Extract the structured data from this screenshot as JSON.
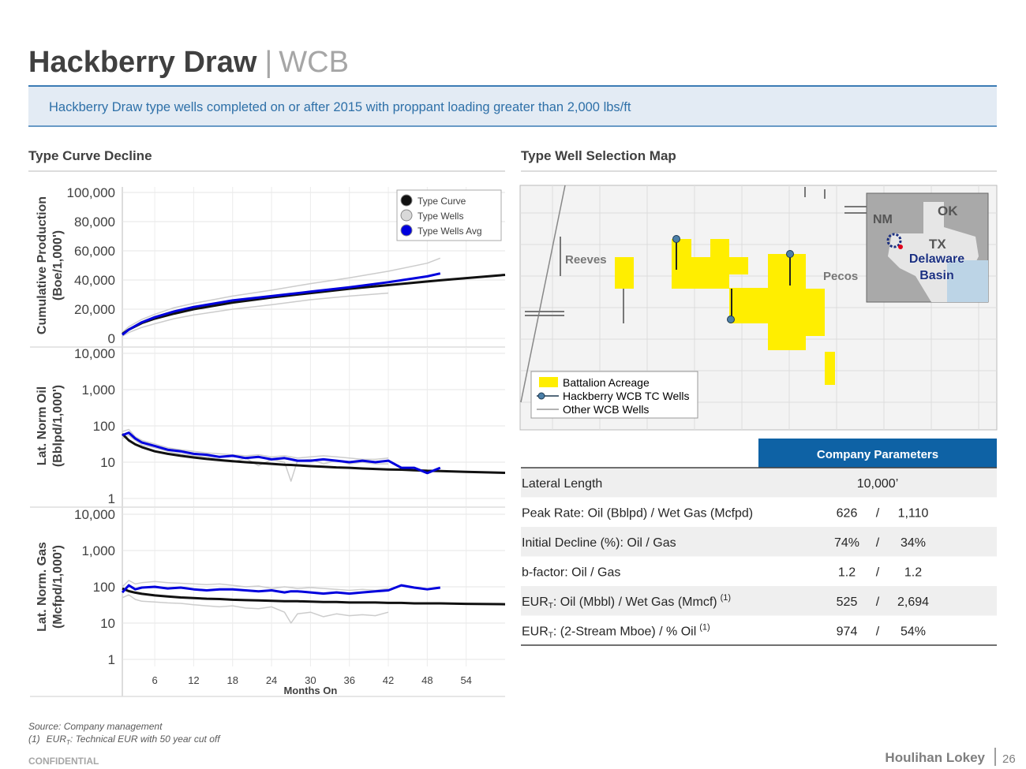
{
  "header": {
    "title": "Hackberry Draw",
    "separator": "|",
    "subtitle": "WCB"
  },
  "banner": "Hackberry Draw type wells completed on or after 2015 with proppant loading greater than 2,000 lbs/ft",
  "left_heading": "Type Curve Decline",
  "right_heading": "Type Well Selection Map",
  "chart_data": [
    {
      "type": "line",
      "ylabel": [
        "Cumulative Production",
        "(Boe/1,000')"
      ],
      "x": [
        1,
        2,
        4,
        6,
        9,
        12,
        18,
        24,
        30,
        36,
        42,
        48,
        50,
        54,
        60
      ],
      "xlim": [
        1,
        60
      ],
      "xticks": [
        6,
        12,
        18,
        24,
        30,
        36,
        42,
        48,
        54
      ],
      "ylim": [
        0,
        100000
      ],
      "yticks": [
        0,
        {
          "value": 20000,
          "label": "20,000"
        },
        {
          "value": 40000,
          "label": "40,000"
        },
        {
          "value": 60000,
          "label": "60,000"
        },
        {
          "value": 80000,
          "label": "80,000"
        },
        {
          "value": 100000,
          "label": "100,000"
        }
      ],
      "grid": true,
      "legend": "upper right",
      "series": [
        {
          "name": "Type Wells",
          "color": "#cccccc",
          "values": [
            4000,
            8000,
            13000,
            16500,
            21000,
            24000,
            29000,
            33000,
            37500,
            41500,
            46000,
            51500,
            55000,
            null,
            null
          ]
        },
        {
          "color": "#cccccc",
          "values": [
            1500,
            4000,
            7500,
            10000,
            13500,
            16000,
            20000,
            23000,
            26500,
            29000,
            31000,
            null,
            null,
            null,
            null
          ]
        },
        {
          "name": "Type Curve",
          "color": "#111111",
          "values": [
            3000,
            6000,
            10500,
            13500,
            17000,
            20000,
            24500,
            28000,
            31000,
            34000,
            36500,
            39000,
            39800,
            41300,
            43500
          ]
        },
        {
          "name": "Type Wells Avg",
          "color": "#0000dd",
          "values": [
            2500,
            6000,
            11000,
            14500,
            18500,
            21500,
            26000,
            29000,
            32000,
            35000,
            38500,
            42500,
            44500,
            null,
            null
          ]
        }
      ]
    },
    {
      "type": "line",
      "ylabel": [
        "Lat. Norm Oil",
        "(Bblpd/1,000')"
      ],
      "log_scale": true,
      "x": [
        1,
        2,
        3,
        4,
        6,
        8,
        10,
        12,
        14,
        16,
        18,
        20,
        22,
        24,
        26,
        27,
        28,
        30,
        32,
        34,
        36,
        38,
        40,
        42,
        44,
        46,
        48,
        50,
        54,
        60
      ],
      "xlim": [
        1,
        60
      ],
      "xticks": [
        6,
        12,
        18,
        24,
        30,
        36,
        42,
        48,
        54
      ],
      "ylim": [
        1,
        10000
      ],
      "yticks": [
        1,
        10,
        100,
        {
          "value": 1000,
          "label": "1,000"
        },
        {
          "value": 10000,
          "label": "10,000"
        }
      ],
      "grid": true,
      "series": [
        {
          "color": "#cccccc",
          "values": [
            45,
            55,
            40,
            30,
            25,
            20,
            17,
            15,
            14,
            12,
            10,
            13,
            8,
            12,
            10,
            3,
            11,
            12,
            9,
            11,
            9,
            10,
            9,
            9,
            null,
            null,
            null,
            null,
            null,
            null
          ]
        },
        {
          "color": "#cccccc",
          "values": [
            70,
            80,
            50,
            40,
            32,
            25,
            22,
            20,
            18,
            17,
            16,
            15,
            16,
            14,
            15,
            14,
            13,
            14,
            15,
            14,
            13,
            12,
            12,
            13,
            null,
            null,
            null,
            null,
            null,
            null
          ]
        },
        {
          "color": "#111111",
          "values": [
            60,
            40,
            31,
            26,
            20,
            17,
            15,
            13.5,
            12.3,
            11.4,
            10.6,
            10,
            9.5,
            9,
            8.5,
            8.4,
            8.2,
            7.8,
            7.5,
            7.2,
            7,
            6.7,
            6.5,
            6.3,
            6.2,
            6,
            5.8,
            5.7,
            5.4,
            5.1
          ]
        },
        {
          "color": "#0000dd",
          "values": [
            55,
            65,
            45,
            35,
            28,
            22,
            20,
            17,
            16,
            14,
            15,
            13,
            14,
            12,
            13,
            12,
            11,
            11,
            12,
            11,
            10,
            11,
            10,
            11,
            7,
            7,
            5,
            7,
            null,
            null
          ]
        }
      ]
    },
    {
      "type": "line",
      "ylabel": [
        "Lat. Norm. Gas",
        "(Mcfpd/1,000')"
      ],
      "log_scale": true,
      "xlabel": "Months On",
      "x": [
        1,
        2,
        3,
        4,
        6,
        8,
        10,
        12,
        14,
        16,
        18,
        20,
        22,
        24,
        26,
        27,
        28,
        30,
        32,
        34,
        36,
        38,
        40,
        42,
        44,
        46,
        48,
        50,
        54,
        60
      ],
      "xlim": [
        1,
        60
      ],
      "xticks": [
        6,
        12,
        18,
        24,
        30,
        36,
        42,
        48,
        54
      ],
      "ylim": [
        1,
        10000
      ],
      "yticks": [
        1,
        10,
        100,
        {
          "value": 1000,
          "label": "1,000"
        },
        {
          "value": 10000,
          "label": "10,000"
        }
      ],
      "grid": true,
      "series": [
        {
          "color": "#cccccc",
          "values": [
            100,
            150,
            120,
            130,
            140,
            130,
            125,
            120,
            115,
            120,
            110,
            100,
            105,
            90,
            100,
            95,
            90,
            95,
            90,
            85,
            80,
            85,
            80,
            90,
            null,
            null,
            null,
            null,
            null,
            null
          ]
        },
        {
          "color": "#cccccc",
          "values": [
            50,
            60,
            45,
            40,
            38,
            36,
            35,
            32,
            30,
            28,
            30,
            26,
            25,
            28,
            20,
            10,
            18,
            20,
            15,
            18,
            16,
            17,
            16,
            20,
            null,
            null,
            null,
            null,
            null,
            null
          ]
        },
        {
          "color": "#111111",
          "values": [
            90,
            76,
            69,
            64,
            58,
            54,
            51,
            49,
            47,
            46,
            44,
            43,
            42,
            41,
            40,
            40,
            40,
            39,
            38,
            38,
            37,
            37,
            37,
            36,
            36,
            35,
            35,
            35,
            34,
            33
          ]
        },
        {
          "color": "#0000dd",
          "values": [
            70,
            110,
            85,
            95,
            100,
            90,
            95,
            85,
            80,
            85,
            85,
            80,
            75,
            80,
            70,
            75,
            75,
            70,
            65,
            70,
            65,
            70,
            75,
            80,
            110,
            95,
            85,
            95,
            null,
            null
          ]
        }
      ]
    }
  ],
  "map": {
    "counties": [
      "Reeves",
      "Pecos"
    ],
    "states": [
      "NM",
      "OK",
      "TX"
    ],
    "basin": [
      "Delaware",
      "Basin"
    ],
    "legend": [
      "Battalion Acreage",
      "Hackberry WCB TC Wells",
      "Other WCB Wells"
    ]
  },
  "table": {
    "header": "Company Parameters",
    "rows": [
      {
        "label": "Lateral Length",
        "value": "10,000’"
      },
      {
        "label": "Peak Rate: Oil (Bblpd) / Wet Gas (Mcfpd)",
        "values": [
          "626",
          "/",
          "1,110"
        ]
      },
      {
        "label": "Initial Decline (%): Oil / Gas",
        "values": [
          "74%",
          "/",
          "34%"
        ]
      },
      {
        "label": "b-factor: Oil / Gas",
        "values": [
          "1.2",
          "/",
          "1.2"
        ]
      },
      {
        "label": {
          "main": "EUR",
          "sub": "T",
          "rest": ": Oil (Mbbl) / Wet Gas (Mmcf)",
          "note": "(1)"
        },
        "values": [
          "525",
          "/",
          "2,694"
        ]
      },
      {
        "label": {
          "main": "EUR",
          "sub": "T",
          "rest": ": (2-Stream Mboe) / % Oil",
          "note": "(1)"
        },
        "values": [
          "974",
          "/",
          "54%"
        ]
      }
    ]
  },
  "footnotes": {
    "source": "Source: Company management",
    "note": {
      "num": "(1)",
      "main": "EUR",
      "sub": "T",
      "rest": ": Technical EUR with 50 year cut off"
    }
  },
  "footer": {
    "confidential": "CONFIDENTIAL",
    "brand": "Houlihan Lokey",
    "page": "26"
  }
}
